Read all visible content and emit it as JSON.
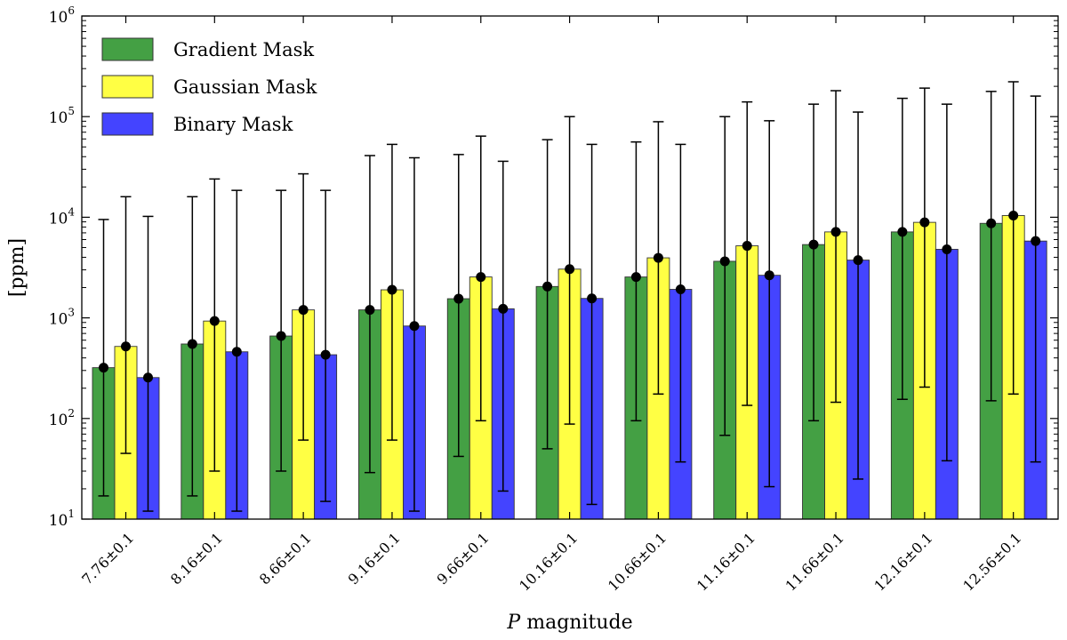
{
  "chart_data": {
    "type": "bar",
    "title": "",
    "xlabel": "P magnitude",
    "ylabel": "[ppm]",
    "yscale": "log",
    "ylim": [
      10,
      1000000
    ],
    "y_ticks": [
      {
        "value": 10,
        "base": "10",
        "exp": "1"
      },
      {
        "value": 100,
        "base": "10",
        "exp": "2"
      },
      {
        "value": 1000,
        "base": "10",
        "exp": "3"
      },
      {
        "value": 10000,
        "base": "10",
        "exp": "4"
      },
      {
        "value": 100000,
        "base": "10",
        "exp": "5"
      },
      {
        "value": 1000000,
        "base": "10",
        "exp": "6"
      }
    ],
    "categories": [
      "7.76±0.1",
      "8.16±0.1",
      "8.66±0.1",
      "9.16±0.1",
      "9.66±0.1",
      "10.16±0.1",
      "10.66±0.1",
      "11.16±0.1",
      "11.66±0.1",
      "12.16±0.1",
      "12.56±0.1"
    ],
    "legend_position": "top-left",
    "grid": false,
    "series": [
      {
        "name": "Gradient Mask",
        "color": "#44a044",
        "values": [
          320,
          550,
          660,
          1200,
          1550,
          2050,
          2550,
          3650,
          5350,
          7150,
          8700
        ],
        "err_low": [
          17,
          17,
          30,
          29,
          42,
          50,
          95,
          68,
          95,
          155,
          150
        ],
        "err_high": [
          9500,
          16000,
          18500,
          41000,
          42000,
          59000,
          56000,
          100000,
          133000,
          152000,
          178000
        ]
      },
      {
        "name": "Gaussian Mask",
        "color": "#ffff44",
        "values": [
          520,
          930,
          1200,
          1900,
          2550,
          3050,
          3950,
          5200,
          7150,
          8900,
          10400
        ],
        "err_low": [
          45,
          30,
          61,
          61,
          95,
          88,
          175,
          135,
          145,
          205,
          175
        ],
        "err_high": [
          16000,
          24000,
          27000,
          53000,
          64000,
          100000,
          89000,
          140000,
          181000,
          192000,
          222000
        ]
      },
      {
        "name": "Binary Mask",
        "color": "#4444ff",
        "values": [
          255,
          460,
          430,
          830,
          1230,
          1560,
          1920,
          2650,
          3750,
          4800,
          5800
        ],
        "err_low": [
          12,
          12,
          15,
          12,
          19,
          14,
          37,
          21,
          25,
          38,
          37
        ],
        "err_high": [
          10200,
          18500,
          18500,
          39000,
          36000,
          53000,
          53000,
          91000,
          111000,
          133000,
          160000
        ]
      }
    ]
  }
}
